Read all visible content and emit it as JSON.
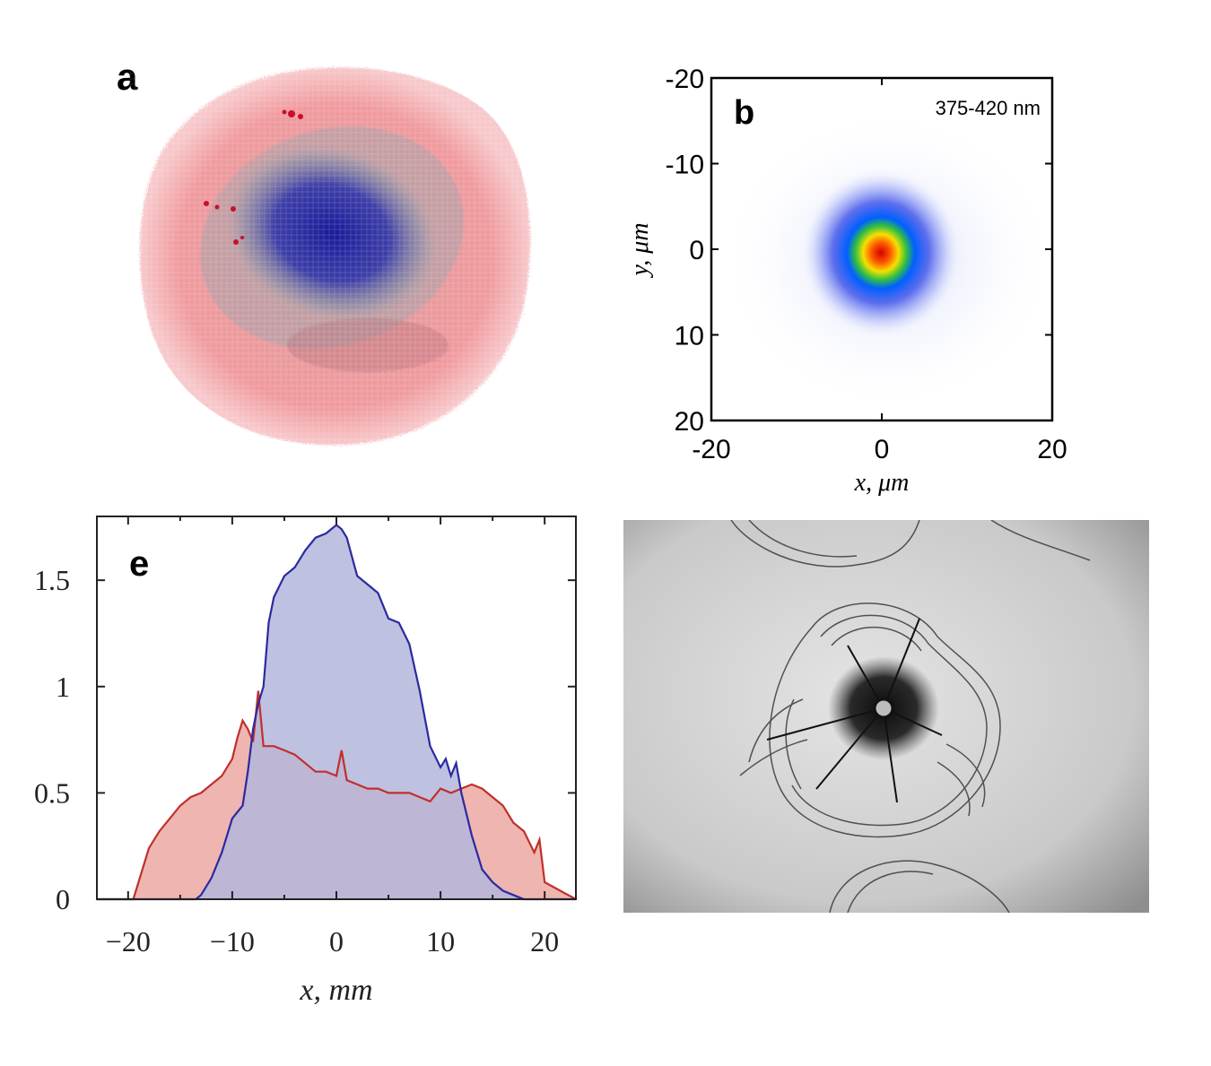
{
  "panels": {
    "a": {
      "label": "a"
    },
    "b": {
      "label": "b",
      "wavelength": "375-420 nm"
    },
    "e": {
      "label": "e"
    }
  },
  "chart_data": [
    {
      "panel": "b",
      "type": "heatmap",
      "title": "375-420 nm",
      "xlabel": "x, μm",
      "ylabel": "y, μm",
      "xlim": [
        -20,
        20
      ],
      "ylim": [
        20,
        -20
      ],
      "x_ticks": [
        -20,
        0,
        20
      ],
      "y_ticks": [
        -20,
        -10,
        0,
        10,
        20
      ],
      "x_tick_labels": [
        "-20",
        "0",
        "20"
      ],
      "y_tick_labels": [
        "-20",
        "-10",
        "0",
        "10",
        "20"
      ],
      "peak": {
        "x": 0,
        "y": 0
      }
    },
    {
      "panel": "e",
      "type": "area",
      "xlabel": "x, mm",
      "ylabel": "",
      "xlim": [
        -23,
        23
      ],
      "ylim": [
        0,
        1.8
      ],
      "x_ticks": [
        -20,
        -10,
        0,
        10,
        20
      ],
      "x_tick_labels": [
        "−20",
        "−10",
        "0",
        "10",
        "20"
      ],
      "y_ticks": [
        0,
        0.5,
        1,
        1.5
      ],
      "y_tick_labels": [
        "0",
        "0.5",
        "1",
        "1.5"
      ],
      "series": [
        {
          "name": "red",
          "color": "#c0302a",
          "fill": "#e8958e",
          "x": [
            -23,
            -19.5,
            -19,
            -18,
            -17,
            -16,
            -15,
            -14,
            -13,
            -12,
            -11,
            -10,
            -9.5,
            -9,
            -8.5,
            -8,
            -7.5,
            -7,
            -6,
            -5,
            -4,
            -3,
            -2,
            -1,
            0,
            0.5,
            1,
            2,
            3,
            4,
            5,
            6,
            7,
            8,
            9,
            10,
            11,
            12,
            13,
            14,
            15,
            16,
            17,
            18,
            19,
            19.5,
            20,
            23
          ],
          "values": [
            0,
            0,
            0.08,
            0.24,
            0.32,
            0.38,
            0.44,
            0.48,
            0.5,
            0.54,
            0.58,
            0.66,
            0.76,
            0.84,
            0.8,
            0.74,
            0.98,
            0.72,
            0.72,
            0.7,
            0.68,
            0.64,
            0.6,
            0.6,
            0.58,
            0.7,
            0.56,
            0.54,
            0.52,
            0.52,
            0.5,
            0.5,
            0.5,
            0.48,
            0.46,
            0.52,
            0.5,
            0.52,
            0.54,
            0.52,
            0.48,
            0.44,
            0.36,
            0.32,
            0.22,
            0.28,
            0.08,
            0
          ]
        },
        {
          "name": "blue",
          "color": "#2a2aa0",
          "fill": "#b4b6dc",
          "x": [
            -23,
            -13.5,
            -13,
            -12,
            -11,
            -10,
            -9,
            -8.5,
            -8,
            -7.5,
            -7,
            -6.5,
            -6,
            -5,
            -4,
            -3,
            -2,
            -1,
            0,
            0.5,
            1,
            2,
            3,
            4,
            5,
            6,
            7,
            8,
            9,
            10,
            10.5,
            11,
            11.5,
            12,
            13,
            14,
            15,
            16,
            17,
            18,
            23
          ],
          "values": [
            0,
            0,
            0.02,
            0.1,
            0.22,
            0.38,
            0.44,
            0.6,
            0.8,
            0.92,
            1.0,
            1.3,
            1.42,
            1.52,
            1.56,
            1.64,
            1.7,
            1.72,
            1.76,
            1.74,
            1.7,
            1.52,
            1.48,
            1.44,
            1.32,
            1.3,
            1.2,
            0.98,
            0.72,
            0.62,
            0.66,
            0.58,
            0.64,
            0.5,
            0.3,
            0.14,
            0.08,
            0.04,
            0.02,
            0,
            0
          ]
        }
      ]
    }
  ]
}
